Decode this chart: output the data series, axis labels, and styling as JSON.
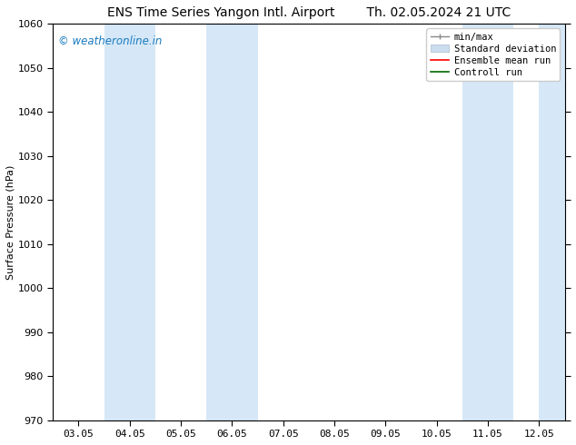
{
  "title_left": "ENS Time Series Yangon Intl. Airport",
  "title_right": "Th. 02.05.2024 21 UTC",
  "ylabel": "Surface Pressure (hPa)",
  "ylim": [
    970,
    1060
  ],
  "yticks": [
    970,
    980,
    990,
    1000,
    1010,
    1020,
    1030,
    1040,
    1050,
    1060
  ],
  "xtick_labels": [
    "03.05",
    "04.05",
    "05.05",
    "06.05",
    "07.05",
    "08.05",
    "09.05",
    "10.05",
    "11.05",
    "12.05"
  ],
  "xtick_positions": [
    0,
    1,
    2,
    3,
    4,
    5,
    6,
    7,
    8,
    9
  ],
  "xlim": [
    -0.5,
    9.5
  ],
  "shaded_bands": [
    {
      "x_start": 0.5,
      "x_end": 1.5,
      "color": "#d6e8f7"
    },
    {
      "x_start": 2.5,
      "x_end": 3.5,
      "color": "#d6e8f7"
    },
    {
      "x_start": 7.5,
      "x_end": 8.5,
      "color": "#d6e8f7"
    },
    {
      "x_start": 9.0,
      "x_end": 9.5,
      "color": "#d6e8f7"
    }
  ],
  "watermark_text": "© weatheronline.in",
  "watermark_color": "#1a7abf",
  "background_color": "#ffffff",
  "plot_bg_color": "#ffffff",
  "title_fontsize": 10,
  "axis_label_fontsize": 8,
  "tick_fontsize": 8,
  "watermark_fontsize": 8.5,
  "legend_fontsize": 7.5
}
